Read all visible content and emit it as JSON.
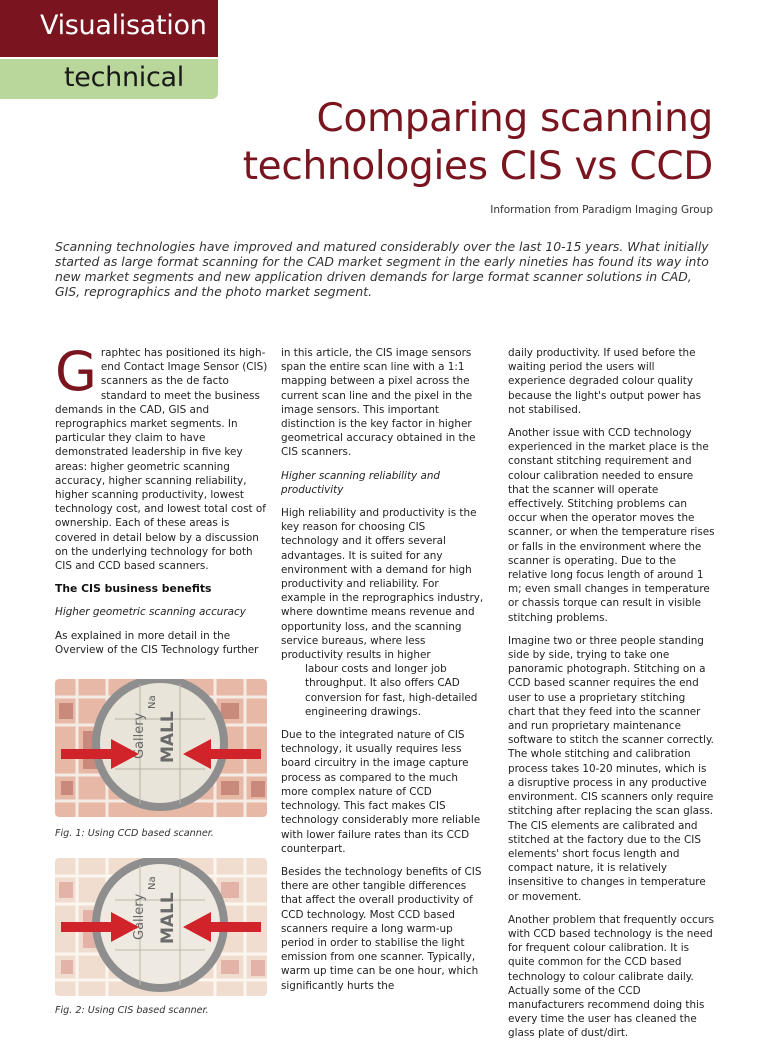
{
  "header": {
    "section": "Visualisation",
    "subsection": "technical",
    "title_line1": "Comparing scanning",
    "title_line2": "technologies CIS vs CCD",
    "source": "Information from Paradigm Imaging Group"
  },
  "intro": "Scanning technologies have improved and matured considerably over the last 10-15 years. What initially started as large format scanning for the CAD market segment in the early nineties has found its way into new market segments and new application driven demands for large format scanner solutions in CAD, GIS, reprographics and the photo market segment.",
  "col1": {
    "dropcap": "G",
    "p1": "raphtec has positioned its high-end Contact Image Sensor (CIS) scanners as the de facto standard to meet the business demands in the CAD, GIS and reprographics market segments. In particular they claim to have demonstrated leadership in five key areas: higher geometric scanning accuracy, higher scanning reliability, higher scanning productivity, lowest technology cost, and lowest total cost of ownership. Each of these areas is covered in detail below by a discussion on the underlying technology for both CIS and CCD based scanners.",
    "h1": "The CIS business benefits",
    "h2": "Higher geometric scanning accuracy",
    "p2": "As explained in more detail in the Overview of the CIS Technology further"
  },
  "col2": {
    "p1": "in this article, the CIS image sensors span the entire scan line with a 1:1 mapping between a pixel across the current scan line and the pixel in the image sensors. This important distinction is the key factor in higher geometrical accuracy obtained in the CIS scanners.",
    "h1": "Higher scanning reliability and productivity",
    "p2a": "High reliability and productivity is the key reason for choosing CIS technology and it offers several advantages. It is suited for any environment with a demand for high productivity and reliability. For example in the reprographics industry, where downtime means revenue and opportunity loss, and the scanning service bureaus, where less productivity results in higher",
    "p2b": "labour costs and longer job throughput. It also offers CAD conversion for fast, high-detailed engineering drawings.",
    "p3": "Due to the integrated nature of CIS technology, it usually requires less board circuitry in the image capture process as compared to the much more complex nature of CCD technology. This fact makes CIS technology considerably more reliable with lower failure rates than its CCD counterpart.",
    "p4": "Besides the technology benefits of CIS there are other tangible differences that affect the overall productivity of CCD technology. Most CCD based scanners require a long warm-up period in order to stabilise the light emission from one scanner. Typically, warm up time can be one hour, which significantly hurts the"
  },
  "col3": {
    "p1": "daily productivity. If used before the waiting period the users will experience degraded colour quality because the light's output power has not stabilised.",
    "p2": "Another issue with CCD technology experienced in the market place is the constant stitching requirement and colour calibration needed to ensure that the scanner will operate effectively. Stitching problems can occur when the operator moves the scanner, or when the temperature rises or falls in the environment where the scanner is operating. Due to the relative long focus length of around 1 m; even small changes in temperature or chassis torque can result in visible stitching problems.",
    "p3": "Imagine two or three people standing side by side, trying to take one panoramic photograph. Stitching on a CCD based scanner requires the end user to use a proprietary stitching chart that they feed into the scanner and run proprietary maintenance software to stitch the scanner correctly. The whole stitching and calibration process takes 10-20 minutes, which is a disruptive process in any productive environment. CIS scanners only require stitching after replacing the scan glass. The CIS elements are calibrated and stitched at the factory due to the CIS elements' short focus length and compact nature, it is relatively insensitive to changes in temperature or movement.",
    "p4": "Another problem that frequently occurs with CCD based technology is the need for frequent colour calibration. It is quite common for the CCD based technology to colour calibrate daily. Actually some of the CCD manufacturers recommend doing this every time the user has cleaned the glass plate of dust/dirt."
  },
  "figures": [
    {
      "caption": "Fig. 1: Using CCD based scanner.",
      "map_word1": "Gallery",
      "map_word2": "MALL",
      "map_word3": "Na"
    },
    {
      "caption": "Fig. 2: Using CIS based scanner.",
      "map_word1": "Gallery",
      "map_word2": "MALL",
      "map_word3": "Na"
    }
  ],
  "colors": {
    "accent": "#7a1520",
    "tab_green": "#b9d79a",
    "map_pink": "#e8b8a6",
    "arrow_red": "#d1232a"
  }
}
